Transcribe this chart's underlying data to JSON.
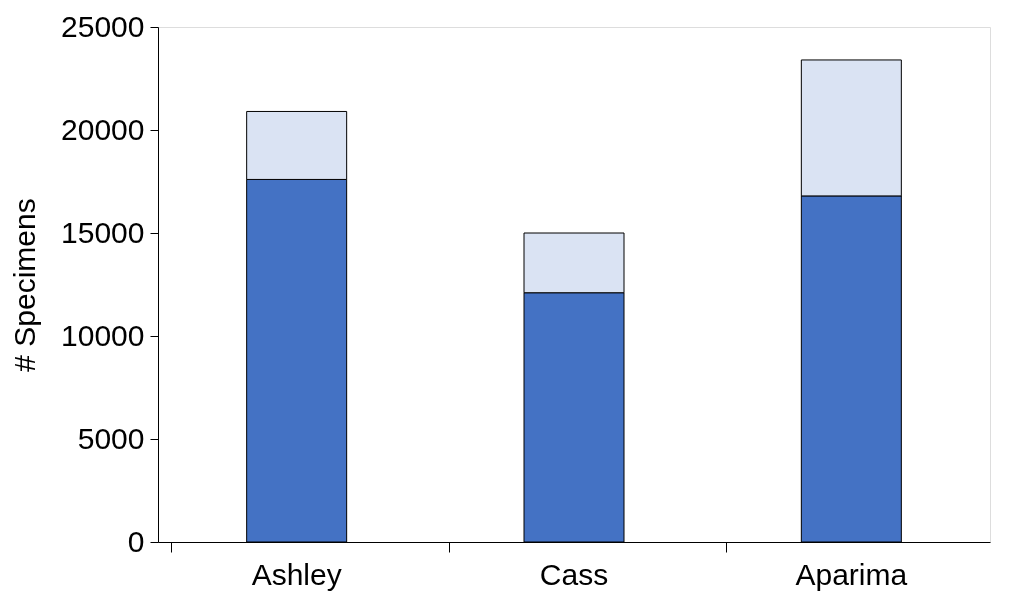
{
  "chart_data": {
    "type": "bar",
    "ylabel": "# Specimens",
    "stacked": true,
    "categories": [
      "Ashley",
      "Cass",
      "Aparima"
    ],
    "series": [
      {
        "color": "#4472c4",
        "values": [
          17600,
          12100,
          16800
        ]
      },
      {
        "color": "#dae3f3",
        "values": [
          3300,
          2900,
          6600
        ]
      }
    ],
    "ylim": [
      0,
      25000
    ],
    "yticks": [
      0,
      5000,
      10000,
      15000,
      20000,
      25000
    ],
    "grid": false
  }
}
